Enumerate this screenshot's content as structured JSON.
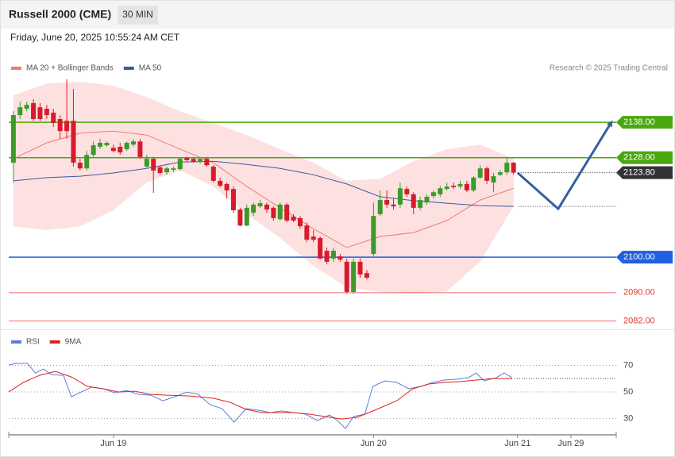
{
  "header": {
    "title": "Russell 2000 (CME)",
    "timeframe": "30 MIN",
    "timestamp": "Friday, June 20, 2025 10:55:24 AM CET"
  },
  "chart_data": [
    {
      "type": "candlestick",
      "source": "Research © 2025 Trading Central",
      "legend": "top-left",
      "xlim": [
        -0.7,
        90.4
      ],
      "ylim": [
        2080.8,
        2151.2
      ],
      "candles": {
        "up_color": "#3d9a2a",
        "down_color": "#d81b2c",
        "open": [
          2126.6,
          2140.0,
          2141.8,
          2143.4,
          2142.2,
          2141.8,
          2140.7,
          2138.9,
          2138.4,
          2138.4,
          2126.6,
          2125.0,
          2128.8,
          2131.1,
          2131.5,
          2130.8,
          2131.1,
          2130.4,
          2131.7,
          2132.6,
          2125.5,
          2127.7,
          2125.3,
          2123.9,
          2124.6,
          2124.8,
          2127.9,
          2127.7,
          2126.8,
          2127.7,
          2125.5,
          2121.5,
          2120.6,
          2119.2,
          2113.4,
          2108.9,
          2112.5,
          2114.3,
          2114.8,
          2113.9,
          2110.7,
          2114.8,
          2111.4,
          2111.0,
          2108.9,
          2105.8,
          2105.4,
          2101.8,
          2099.6,
          2100.2,
          2098.7,
          2090.2,
          2098.7,
          2095.5,
          2100.9,
          2112.1,
          2116.1,
          2114.8,
          2114.8,
          2119.2,
          2117.7,
          2113.9,
          2115.4,
          2117.2,
          2117.7,
          2119.2,
          2120.1,
          2119.9,
          2120.6,
          2118.8,
          2122.4,
          2125.0,
          2121.0,
          2123.2,
          2123.9,
          2126.6
        ],
        "high": [
          2141.1,
          2143.8,
          2143.8,
          2144.5,
          2143.4,
          2142.9,
          2141.8,
          2140.0,
          2150.1,
          2147.4,
          2127.7,
          2129.9,
          2132.6,
          2133.3,
          2132.6,
          2131.7,
          2132.2,
          2132.6,
          2133.3,
          2133.3,
          2128.8,
          2128.2,
          2125.9,
          2125.5,
          2125.5,
          2128.2,
          2128.2,
          2128.2,
          2128.2,
          2128.2,
          2125.9,
          2122.4,
          2121.0,
          2119.9,
          2113.9,
          2114.8,
          2115.4,
          2116.1,
          2115.4,
          2114.3,
          2115.4,
          2115.2,
          2112.1,
          2111.6,
          2109.8,
          2107.6,
          2105.8,
          2102.7,
          2102.7,
          2100.9,
          2099.6,
          2099.6,
          2099.6,
          2096.4,
          2115.4,
          2118.8,
          2118.8,
          2116.5,
          2121.0,
          2119.9,
          2118.3,
          2117.0,
          2117.7,
          2118.8,
          2120.1,
          2121.0,
          2121.0,
          2121.5,
          2121.5,
          2122.8,
          2125.9,
          2125.5,
          2123.7,
          2124.6,
          2128.2,
          2126.8
        ],
        "low": [
          2121.0,
          2138.9,
          2141.1,
          2138.4,
          2138.4,
          2138.9,
          2136.7,
          2133.3,
          2133.3,
          2125.5,
          2124.4,
          2124.4,
          2128.2,
          2130.4,
          2131.1,
          2129.5,
          2128.8,
          2129.9,
          2131.1,
          2127.7,
          2125.0,
          2118.1,
          2123.2,
          2123.2,
          2123.9,
          2124.4,
          2126.8,
          2126.6,
          2126.4,
          2125.5,
          2121.0,
          2119.7,
          2116.5,
          2112.5,
          2108.7,
          2108.7,
          2111.6,
          2113.9,
          2112.5,
          2110.3,
          2110.3,
          2109.8,
          2109.8,
          2108.0,
          2104.2,
          2104.2,
          2099.3,
          2098.0,
          2098.7,
          2098.7,
          2089.7,
          2089.7,
          2094.2,
          2093.7,
          2100.0,
          2111.6,
          2113.9,
          2113.4,
          2113.9,
          2117.0,
          2112.1,
          2113.2,
          2114.8,
          2116.5,
          2117.0,
          2118.8,
          2119.2,
          2119.2,
          2118.3,
          2118.3,
          2122.0,
          2120.6,
          2118.3,
          2122.8,
          2123.2,
          2123.2
        ],
        "close": [
          2140.0,
          2142.2,
          2142.9,
          2138.9,
          2138.9,
          2140.0,
          2137.8,
          2135.5,
          2135.5,
          2126.6,
          2125.0,
          2128.8,
          2131.5,
          2132.2,
          2132.2,
          2129.9,
          2129.5,
          2132.2,
          2132.6,
          2128.2,
          2127.7,
          2124.4,
          2123.7,
          2125.0,
          2125.0,
          2127.7,
          2127.3,
          2126.8,
          2127.7,
          2125.9,
          2121.5,
          2120.1,
          2118.8,
          2113.2,
          2108.9,
          2113.9,
          2114.8,
          2115.2,
          2113.4,
          2111.0,
          2114.8,
          2110.3,
          2110.3,
          2108.7,
          2104.9,
          2104.9,
          2099.6,
          2098.7,
          2101.8,
          2099.3,
          2090.2,
          2098.7,
          2095.1,
          2094.2,
          2111.6,
          2116.1,
          2114.8,
          2114.3,
          2119.4,
          2117.7,
          2113.9,
          2116.1,
          2117.0,
          2118.3,
          2119.4,
          2119.9,
          2119.7,
          2120.6,
          2118.8,
          2122.4,
          2125.0,
          2121.5,
          2122.8,
          2123.9,
          2126.6,
          2123.8
        ]
      },
      "series": [
        {
          "name": "MA 20 + Bollinger Bands",
          "color": "#f07a72",
          "band_color": "#fde1e1",
          "x": [
            0,
            5,
            10,
            15,
            20,
            25,
            30,
            35,
            40,
            45,
            50,
            55,
            60,
            65,
            70,
            75
          ],
          "values": [
            2127.7,
            2132.2,
            2134.9,
            2135.5,
            2134.4,
            2130.4,
            2126.6,
            2119.9,
            2113.9,
            2108.0,
            2102.7,
            2105.8,
            2106.9,
            2110.3,
            2116.1,
            2119.4
          ],
          "upper": [
            2145.6,
            2148.9,
            2149.4,
            2148.3,
            2145.1,
            2141.1,
            2137.8,
            2134.4,
            2130.4,
            2126.6,
            2121.5,
            2122.1,
            2127.0,
            2130.4,
            2131.7,
            2127.7
          ],
          "lower": [
            2108.7,
            2107.6,
            2108.7,
            2113.2,
            2121.0,
            2124.4,
            2119.9,
            2112.1,
            2105.4,
            2097.5,
            2091.5,
            2090.2,
            2089.7,
            2090.4,
            2098.7,
            2114.3
          ]
        },
        {
          "name": "MA 50",
          "color": "#3b5b9c",
          "x": [
            0,
            5,
            10,
            15,
            20,
            25,
            30,
            35,
            40,
            45,
            50,
            55,
            60,
            65,
            70,
            75
          ],
          "values": [
            2121.5,
            2122.4,
            2122.8,
            2123.7,
            2125.0,
            2126.8,
            2127.0,
            2126.1,
            2125.0,
            2123.2,
            2120.6,
            2117.0,
            2115.9,
            2115.2,
            2114.5,
            2114.3
          ]
        }
      ],
      "levels": [
        {
          "value": 2138,
          "label": "2138.00",
          "color": "#4aa80e",
          "tag": true,
          "line": "solid"
        },
        {
          "value": 2128,
          "label": "2128.00",
          "color": "#4aa80e",
          "tag": true,
          "line": "solid"
        },
        {
          "value": 2123.8,
          "label": "2123.80",
          "color": "#333333",
          "tag": true,
          "line": "dotted"
        },
        {
          "value": 2100,
          "label": "2100.00",
          "color": "#1f5fe0",
          "tag": true,
          "line": "solid"
        },
        {
          "value": 2090,
          "label": "2090.00",
          "color": "#e8332c",
          "tag": false,
          "line": "solid"
        },
        {
          "value": 2082,
          "label": "2082.00",
          "color": "#e8332c",
          "tag": false,
          "line": "solid"
        }
      ],
      "forecast": {
        "color": "#34619e",
        "x": [
          75.6,
          81.7,
          89.6
        ],
        "values": [
          2123.8,
          2113.6,
          2137.8
        ]
      }
    },
    {
      "type": "line",
      "legend": "top-left",
      "xlim": [
        -0.7,
        90.4
      ],
      "ylim": [
        19.6,
        94.2
      ],
      "yticks": [
        30,
        50,
        70
      ],
      "grid": true,
      "xticks": [
        {
          "value": 15,
          "label": "Jun 19"
        },
        {
          "value": 54,
          "label": "Jun 20"
        },
        {
          "value": 75.6,
          "label": "Jun 21"
        },
        {
          "value": 83.6,
          "label": "Jun 29"
        }
      ],
      "series": [
        {
          "name": "RSI",
          "color": "#5b7fd6",
          "x": [
            -0.7,
            0.4,
            2.1,
            3.3,
            4.5,
            5.7,
            7.5,
            8.7,
            9.9,
            11.7,
            13.5,
            15.2,
            17.0,
            18.8,
            20.6,
            22.4,
            24.2,
            26.0,
            27.7,
            29.5,
            31.3,
            33.1,
            34.9,
            36.7,
            38.5,
            40.2,
            42.0,
            43.8,
            45.6,
            47.4,
            48.6,
            49.8,
            51.0,
            52.7,
            53.9,
            55.7,
            57.5,
            59.3,
            61.1,
            62.9,
            64.6,
            66.4,
            68.2,
            69.4,
            70.6,
            72.4,
            73.6,
            74.8
          ],
          "values": [
            70.3,
            71.5,
            71.5,
            64.3,
            67.3,
            63.1,
            62.5,
            46.4,
            49.4,
            53.6,
            52.4,
            49.4,
            51.2,
            48.2,
            47.6,
            43.4,
            46.4,
            50.0,
            48.2,
            40.4,
            37.5,
            27.3,
            37.5,
            36.3,
            34.5,
            35.7,
            34.5,
            33.3,
            28.5,
            32.7,
            28.5,
            22.5,
            31.5,
            33.3,
            54.2,
            58.4,
            57.2,
            52.4,
            54.2,
            57.2,
            59.0,
            59.6,
            60.7,
            64.3,
            58.4,
            60.7,
            64.3,
            60.7
          ]
        },
        {
          "name": "9MA",
          "color": "#e0201e",
          "x": [
            -0.7,
            1.5,
            3.9,
            6.3,
            8.7,
            11.1,
            13.5,
            15.8,
            18.2,
            20.6,
            23.0,
            26.5,
            30.1,
            32.5,
            34.9,
            37.3,
            39.6,
            42.0,
            44.4,
            46.8,
            49.2,
            51.5,
            53.9,
            57.5,
            59.9,
            62.3,
            64.6,
            67.0,
            69.4,
            71.8,
            74.8
          ],
          "values": [
            50.0,
            57.2,
            62.5,
            65.5,
            61.3,
            54.2,
            52.4,
            50.0,
            50.6,
            48.2,
            47.6,
            47.0,
            45.2,
            42.2,
            36.9,
            34.5,
            34.5,
            34.5,
            33.3,
            31.5,
            29.7,
            30.9,
            35.7,
            43.4,
            52.4,
            56.0,
            57.2,
            57.8,
            59.0,
            60.1,
            60.1
          ]
        }
      ]
    }
  ]
}
